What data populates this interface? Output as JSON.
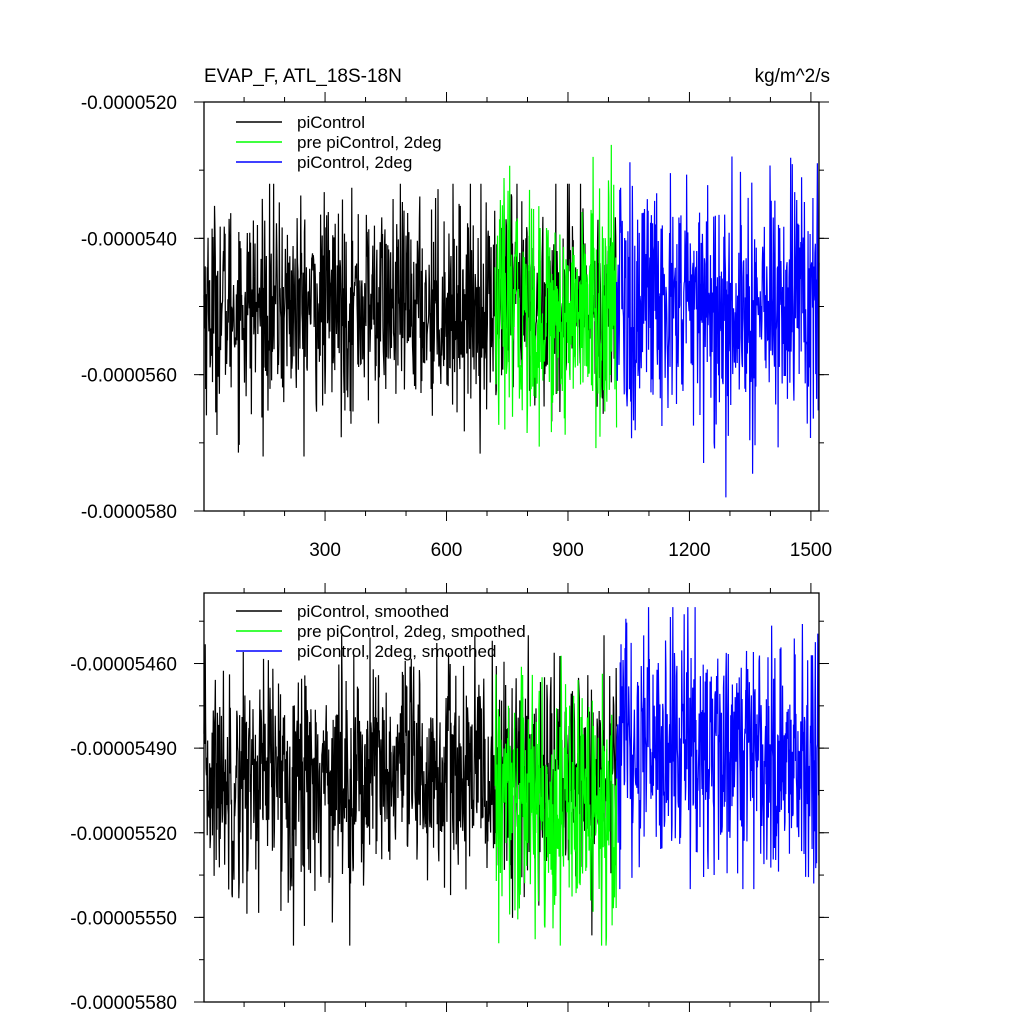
{
  "title_left": "EVAP_F, ATL_18S-18N",
  "title_right": "kg/m^2/s",
  "colors": {
    "piControl": "#000000",
    "pre_piControl_2deg": "#00ff00",
    "piControl_2deg": "#0000ff"
  },
  "chart_data": [
    {
      "type": "line",
      "title": "EVAP_F, ATL_18S-18N",
      "units": "kg/m^2/s",
      "xlim": [
        1,
        1520
      ],
      "ylim": [
        -5.8e-05,
        -5.2e-05
      ],
      "xticks": [
        300,
        600,
        900,
        1200,
        1500
      ],
      "xtick_labels": [
        "300",
        "600",
        "900",
        "1200",
        "1500"
      ],
      "yticks": [
        -5.2e-05,
        -5.4e-05,
        -5.6e-05,
        -5.8e-05
      ],
      "ytick_labels": [
        "-0.0000520",
        "-0.0000540",
        "-0.0000560",
        "-0.0000580"
      ],
      "legend": "top-left",
      "series": [
        {
          "name": "piControl",
          "color": "#000000",
          "x_range": [
            1,
            1020
          ],
          "mean": -5.5e-05,
          "std": 7.5e-07,
          "min": -5.72e-05,
          "max": -5.32e-05
        },
        {
          "name": "pre piControl, 2deg",
          "color": "#00ff00",
          "x_range": [
            720,
            1020
          ],
          "mean": -5.51e-05,
          "std": 8.5e-07,
          "min": -5.74e-05,
          "max": -5.21e-05
        },
        {
          "name": "piControl, 2deg",
          "color": "#0000ff",
          "x_range": [
            1020,
            1520
          ],
          "mean": -5.5e-05,
          "std": 9.5e-07,
          "min": -5.78e-05,
          "max": -5.28e-05
        }
      ]
    },
    {
      "type": "line",
      "title": "",
      "xlim": [
        1,
        1520
      ],
      "ylim": [
        -5.58e-05,
        -5.435e-05
      ],
      "xticks": [
        300,
        600,
        900,
        1200,
        1500
      ],
      "yticks": [
        -5.46e-05,
        -5.49e-05,
        -5.52e-05,
        -5.55e-05,
        -5.58e-05
      ],
      "ytick_labels": [
        "-0.00005460",
        "-0.00005490",
        "-0.00005520",
        "-0.00005550",
        "-0.00005580"
      ],
      "legend": "top-left",
      "series": [
        {
          "name": "piControl, smoothed",
          "color": "#000000",
          "x_range": [
            1,
            1020
          ],
          "mean": -5.5e-05,
          "std": 2e-07,
          "min": -5.56e-05,
          "max": -5.45e-05
        },
        {
          "name": "pre piControl, 2deg, smoothed",
          "color": "#00ff00",
          "x_range": [
            720,
            1020
          ],
          "mean": -5.51e-05,
          "std": 2.2e-07,
          "min": -5.56e-05,
          "max": -5.45e-05
        },
        {
          "name": "piControl, 2deg, smoothed",
          "color": "#0000ff",
          "x_range": [
            1020,
            1520
          ],
          "mean": -5.49e-05,
          "std": 2.2e-07,
          "min": -5.54e-05,
          "max": -5.44e-05
        }
      ]
    }
  ]
}
